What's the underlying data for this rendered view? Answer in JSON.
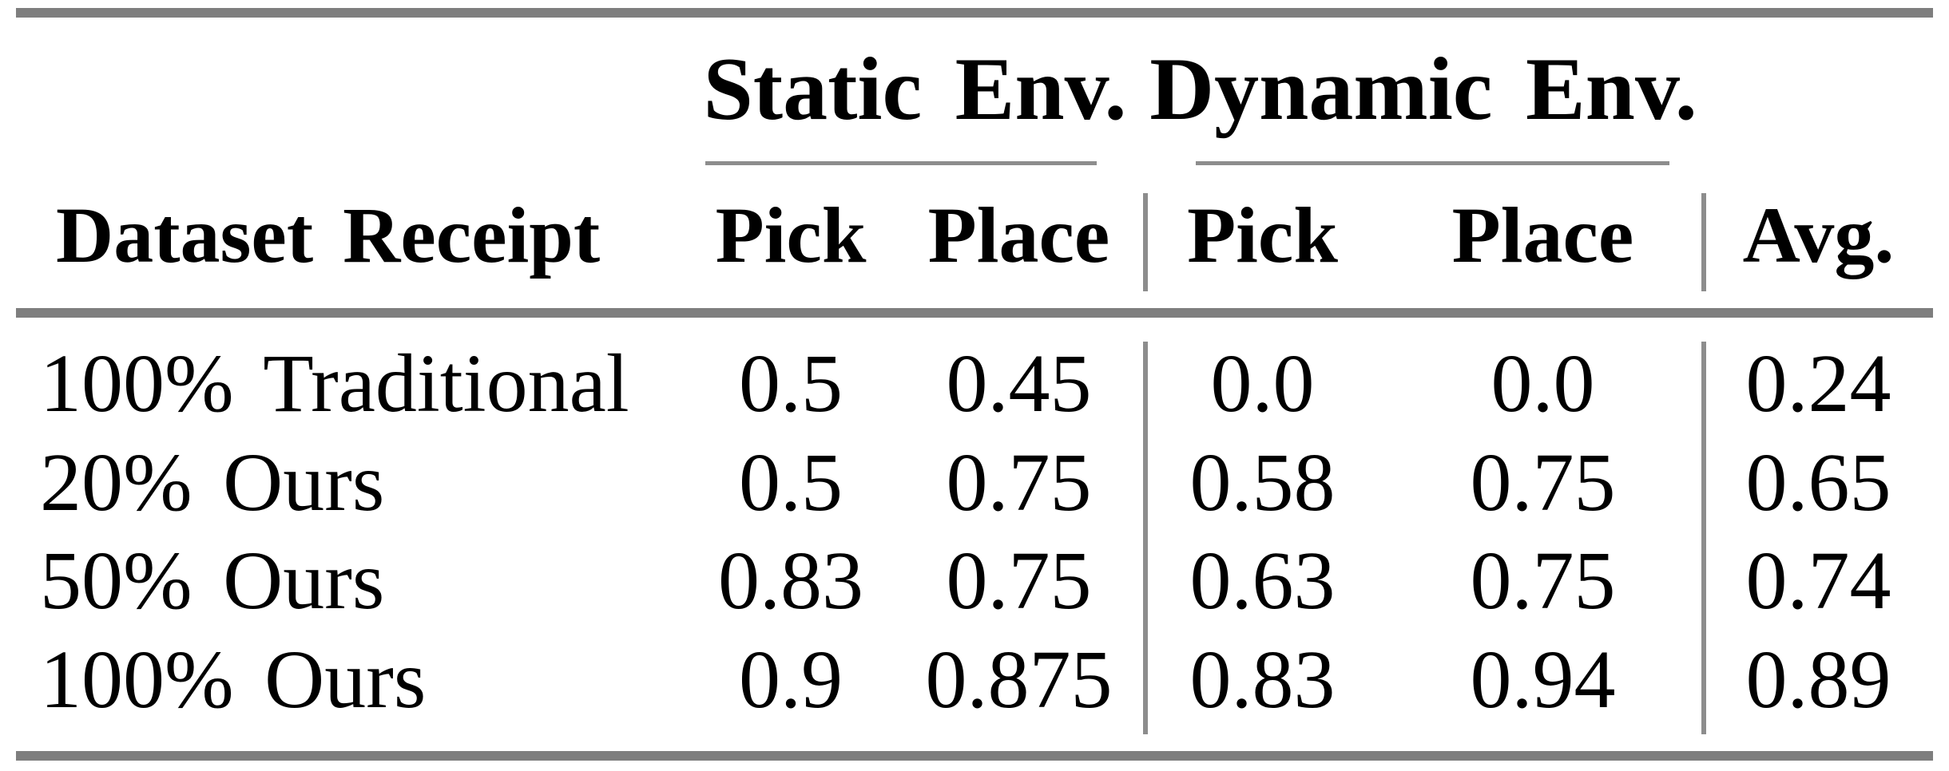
{
  "colors": {
    "rule_thick": "#7e7e7e",
    "rule_thin": "#8d8d8d",
    "text": "#000000",
    "background": "#ffffff"
  },
  "table": {
    "group_headers": {
      "static": "Static Env.",
      "dynamic": "Dynamic Env."
    },
    "column_headers": {
      "row_header": "Dataset Receipt",
      "static_pick": "Pick",
      "static_place": "Place",
      "dynamic_pick": "Pick",
      "dynamic_place": "Place",
      "avg": "Avg."
    },
    "rows": [
      {
        "label": "100% Traditional",
        "static_pick": "0.5",
        "static_place": "0.45",
        "dynamic_pick": "0.0",
        "dynamic_place": "0.0",
        "avg": "0.24"
      },
      {
        "label": "20% Ours",
        "static_pick": "0.5",
        "static_place": "0.75",
        "dynamic_pick": "0.58",
        "dynamic_place": "0.75",
        "avg": "0.65"
      },
      {
        "label": "50% Ours",
        "static_pick": "0.83",
        "static_place": "0.75",
        "dynamic_pick": "0.63",
        "dynamic_place": "0.75",
        "avg": "0.74"
      },
      {
        "label": "100% Ours",
        "static_pick": "0.9",
        "static_place": "0.875",
        "dynamic_pick": "0.83",
        "dynamic_place": "0.94",
        "avg": "0.89"
      }
    ]
  },
  "chart_data": {
    "type": "table",
    "columns": [
      "Dataset Receipt",
      "Static Env. Pick",
      "Static Env. Place",
      "Dynamic Env. Pick",
      "Dynamic Env. Place",
      "Avg."
    ],
    "rows": [
      [
        "100% Traditional",
        0.5,
        0.45,
        0.0,
        0.0,
        0.24
      ],
      [
        "20% Ours",
        0.5,
        0.75,
        0.58,
        0.75,
        0.65
      ],
      [
        "50% Ours",
        0.83,
        0.75,
        0.63,
        0.75,
        0.74
      ],
      [
        "100% Ours",
        0.9,
        0.875,
        0.83,
        0.94,
        0.89
      ]
    ]
  }
}
